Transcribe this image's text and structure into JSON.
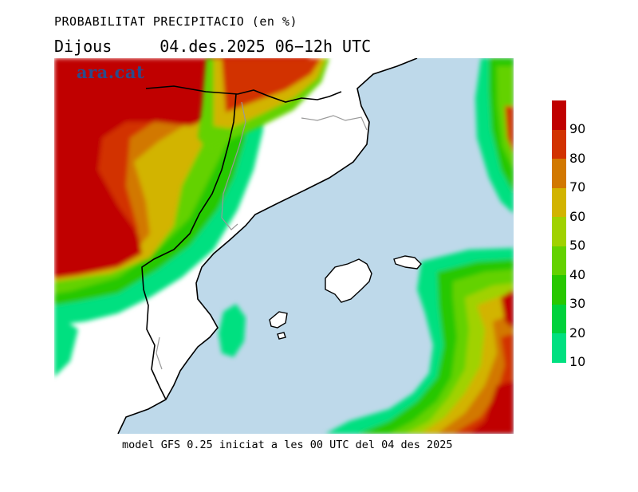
{
  "title": "PROBABILITAT PRECIPITACIO (en %)",
  "subtitle": {
    "day": "Dijous",
    "datetime": "04.des.2025 06−12h UTC"
  },
  "watermark": "ara.cat",
  "footer": "model GFS 0.25 iniciat a les 00 UTC del 04 des 2025",
  "legend": {
    "labels": [
      "90",
      "80",
      "70",
      "60",
      "50",
      "40",
      "30",
      "20",
      "10"
    ],
    "colors": [
      "#c00000",
      "#d23200",
      "#d27800",
      "#d2b400",
      "#a0d200",
      "#64d200",
      "#28c800",
      "#00d23c",
      "#00e080"
    ]
  },
  "colors": {
    "sea": "#bed9ea",
    "land": "#ffffff",
    "coast": "#000000",
    "border": "#999999"
  }
}
